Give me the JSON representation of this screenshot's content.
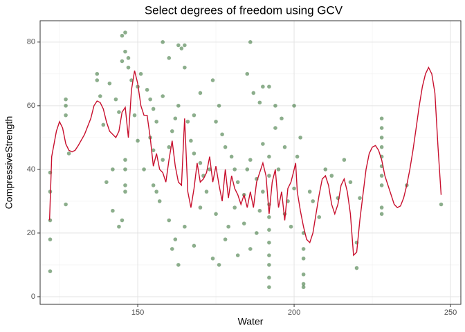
{
  "chart_data": {
    "type": "scatter",
    "title": "Select degrees of freedom using GCV",
    "x_label": "Water",
    "y_label": "CompressiveStrength",
    "xlim": [
      118.8,
      253.3
    ],
    "ylim": [
      -2.4,
      86.7
    ],
    "xticks": [
      150,
      200,
      250
    ],
    "yticks": [
      0,
      20,
      40,
      60,
      80
    ],
    "x_minor_grid": [
      125,
      175,
      225
    ],
    "y_minor_grid": [
      10,
      30,
      50,
      70
    ],
    "grid": true,
    "series": [
      {
        "mode": "points",
        "color": "#2e6b2e",
        "opacity": 0.55,
        "x": [
          122,
          122,
          122,
          122,
          122,
          127,
          127,
          127,
          128,
          127,
          137,
          137,
          138,
          139,
          141,
          142,
          142,
          143,
          144,
          145,
          146,
          145,
          146,
          147,
          147,
          148,
          146,
          146,
          145,
          144,
          146,
          146,
          140,
          150,
          151,
          153,
          154,
          155,
          156,
          154,
          155,
          157,
          156,
          158,
          160,
          161,
          162,
          158,
          160,
          163,
          164,
          165,
          165,
          163,
          166,
          167,
          168,
          170,
          171,
          160,
          162,
          161,
          163,
          165,
          168,
          170,
          172,
          173,
          175,
          176,
          177,
          178,
          180,
          181,
          182,
          184,
          186,
          185,
          187,
          189,
          190,
          192,
          194,
          196,
          186,
          188,
          190,
          192,
          192,
          192,
          192,
          192,
          192,
          192,
          192,
          192,
          192,
          188,
          186,
          184,
          182,
          178,
          176,
          175,
          174,
          179,
          181,
          185,
          189,
          197,
          198,
          200,
          201,
          202,
          203,
          203,
          203,
          203,
          203,
          203,
          205,
          206,
          208,
          210,
          212,
          214,
          216,
          218,
          220,
          220,
          221,
          228,
          228,
          228,
          228,
          228,
          228,
          228,
          228,
          228,
          228,
          236,
          247,
          200,
          197,
          195,
          199,
          190,
          194,
          170,
          168,
          174,
          158,
          155,
          152,
          150,
          149
        ],
        "y": [
          39,
          33,
          18,
          8,
          24,
          62,
          60,
          57,
          45,
          29,
          70,
          68,
          63,
          54,
          67,
          27,
          40,
          62,
          58,
          82,
          83,
          74,
          77,
          75,
          72,
          68,
          35,
          33,
          24,
          22,
          40,
          43,
          36,
          66,
          70,
          65,
          62,
          59,
          55,
          50,
          46,
          30,
          33,
          43,
          47,
          52,
          56,
          80,
          75,
          79,
          78,
          72,
          79,
          60,
          55,
          49,
          45,
          42,
          38,
          24,
          18,
          15,
          10,
          22,
          16,
          28,
          33,
          40,
          55,
          60,
          51,
          47,
          44,
          40,
          36,
          32,
          80,
          70,
          64,
          61,
          66,
          66,
          60,
          56,
          43,
          37,
          33,
          29,
          25,
          21,
          17,
          13,
          10,
          6,
          3,
          38,
          44,
          20,
          15,
          23,
          13,
          18,
          10,
          26,
          12,
          22,
          28,
          40,
          27,
          26,
          30,
          34,
          44,
          50,
          20,
          15,
          12,
          7,
          4,
          3,
          33,
          30,
          25,
          40,
          38,
          31,
          43,
          36,
          9,
          17,
          31,
          56,
          53,
          50,
          47,
          44,
          41,
          38,
          35,
          26,
          28,
          35,
          29,
          60,
          47,
          40,
          22,
          48,
          53,
          64,
          57,
          68,
          63,
          35,
          40,
          49,
          57
        ]
      },
      {
        "mode": "line",
        "color": "#c8102e",
        "x": [
          121.8,
          122.5,
          124,
          125,
          126,
          127,
          128,
          129,
          130,
          131,
          133,
          135,
          136,
          137,
          138,
          139,
          140,
          141,
          142,
          143,
          144,
          145,
          146,
          147,
          148,
          149,
          150,
          151,
          152,
          153,
          154,
          155,
          156,
          157,
          158,
          159,
          160,
          161,
          162,
          163,
          164,
          165,
          166,
          167,
          168,
          169,
          170,
          171,
          172,
          173,
          174,
          175,
          176,
          177,
          178,
          179,
          180,
          181,
          182,
          183,
          184,
          185,
          186,
          187,
          188,
          189,
          190,
          191,
          192,
          193,
          194,
          195,
          196,
          197,
          198,
          199,
          200,
          200.5,
          201,
          202,
          203,
          204,
          205,
          206,
          207,
          208,
          209,
          210,
          211,
          212,
          213,
          214,
          215,
          216,
          217,
          218,
          219,
          220,
          221,
          222,
          223,
          224,
          225,
          226,
          227,
          228,
          229,
          230,
          231,
          232,
          233,
          234,
          235,
          236,
          237,
          238,
          239,
          240,
          241,
          242,
          243,
          244,
          245,
          246,
          247
        ],
        "y": [
          24,
          44,
          52,
          55,
          53,
          48,
          46,
          45.5,
          46,
          47.5,
          51,
          56,
          60,
          61.5,
          61,
          59,
          55,
          52,
          51,
          50,
          52,
          58,
          59.5,
          50,
          65,
          71,
          67,
          60,
          57,
          57,
          50,
          41,
          45,
          40,
          39,
          36,
          43,
          49,
          41,
          36,
          35,
          56,
          33,
          28,
          34,
          42,
          36,
          37,
          39,
          44,
          36,
          41,
          35,
          30,
          40,
          31,
          38,
          34,
          32,
          29,
          32,
          28,
          33,
          28,
          36,
          39,
          42,
          38,
          26,
          36,
          40,
          28,
          33,
          24,
          34,
          36,
          40,
          42,
          33,
          27,
          22,
          18,
          17,
          20,
          26,
          32,
          37,
          38,
          35,
          29,
          26,
          29,
          35,
          37,
          33,
          26,
          13,
          14,
          24,
          32,
          40,
          45,
          47,
          47.5,
          46,
          43,
          38,
          35,
          32,
          29,
          28,
          28.5,
          31,
          35,
          40,
          46,
          53,
          60,
          66,
          70,
          72,
          70,
          64,
          47,
          32
        ]
      }
    ]
  }
}
